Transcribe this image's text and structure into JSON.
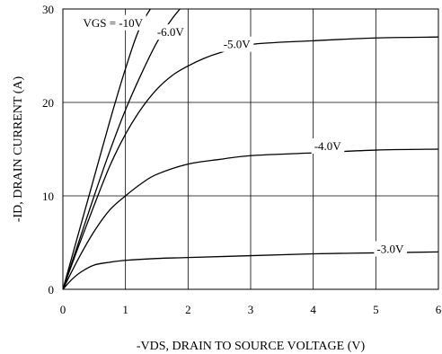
{
  "chart_data": {
    "type": "line",
    "xlabel": "-VDS, DRAIN TO SOURCE VOLTAGE (V)",
    "ylabel": "-ID, DRAIN CURRENT (A)",
    "xlim": [
      0,
      6
    ],
    "ylim": [
      0,
      30
    ],
    "xticks": [
      "0",
      "1",
      "2",
      "3",
      "4",
      "5",
      "6"
    ],
    "yticks": [
      "0",
      "10",
      "20",
      "30"
    ],
    "grid": true,
    "series": [
      {
        "name": "VGS = -10V",
        "label_at": [
          0.8,
          28.1
        ],
        "points": [
          [
            0,
            0
          ],
          [
            0.25,
            6.0
          ],
          [
            0.5,
            12.0
          ],
          [
            0.75,
            18.0
          ],
          [
            1.0,
            23.6
          ],
          [
            1.25,
            28.3
          ],
          [
            1.6,
            32.0
          ]
        ]
      },
      {
        "name": "-6.0V",
        "label_at": [
          1.72,
          27.1
        ],
        "points": [
          [
            0,
            0
          ],
          [
            0.25,
            5.0
          ],
          [
            0.5,
            10.0
          ],
          [
            0.75,
            14.8
          ],
          [
            1.0,
            19.2
          ],
          [
            1.25,
            23.0
          ],
          [
            1.5,
            26.4
          ],
          [
            1.75,
            29.0
          ],
          [
            2.0,
            31.0
          ]
        ]
      },
      {
        "name": "-5.0V",
        "label_at": [
          2.78,
          25.8
        ],
        "points": [
          [
            0,
            0
          ],
          [
            0.25,
            4.6
          ],
          [
            0.5,
            9.0
          ],
          [
            0.75,
            13.2
          ],
          [
            1.0,
            16.6
          ],
          [
            1.25,
            19.3
          ],
          [
            1.5,
            21.4
          ],
          [
            1.75,
            22.9
          ],
          [
            2.0,
            23.9
          ],
          [
            2.25,
            24.7
          ],
          [
            2.5,
            25.3
          ],
          [
            3.0,
            26.2
          ],
          [
            4.0,
            26.6
          ],
          [
            5.0,
            26.9
          ],
          [
            6.0,
            27.0
          ]
        ]
      },
      {
        "name": "-4.0V",
        "label_at": [
          4.23,
          14.9
        ],
        "points": [
          [
            0,
            0
          ],
          [
            0.25,
            3.3
          ],
          [
            0.5,
            6.2
          ],
          [
            0.75,
            8.5
          ],
          [
            1.0,
            10.0
          ],
          [
            1.25,
            11.3
          ],
          [
            1.5,
            12.3
          ],
          [
            2.0,
            13.4
          ],
          [
            2.5,
            13.9
          ],
          [
            3.0,
            14.3
          ],
          [
            4.0,
            14.6
          ],
          [
            5.0,
            14.9
          ],
          [
            6.0,
            15.0
          ]
        ]
      },
      {
        "name": "-3.0V",
        "label_at": [
          5.23,
          3.9
        ],
        "points": [
          [
            0,
            0
          ],
          [
            0.15,
            1.1
          ],
          [
            0.3,
            1.9
          ],
          [
            0.5,
            2.6
          ],
          [
            0.75,
            2.9
          ],
          [
            1.0,
            3.1
          ],
          [
            1.5,
            3.3
          ],
          [
            2.0,
            3.4
          ],
          [
            3.0,
            3.6
          ],
          [
            4.0,
            3.8
          ],
          [
            5.0,
            3.9
          ],
          [
            6.0,
            4.0
          ]
        ]
      }
    ]
  }
}
